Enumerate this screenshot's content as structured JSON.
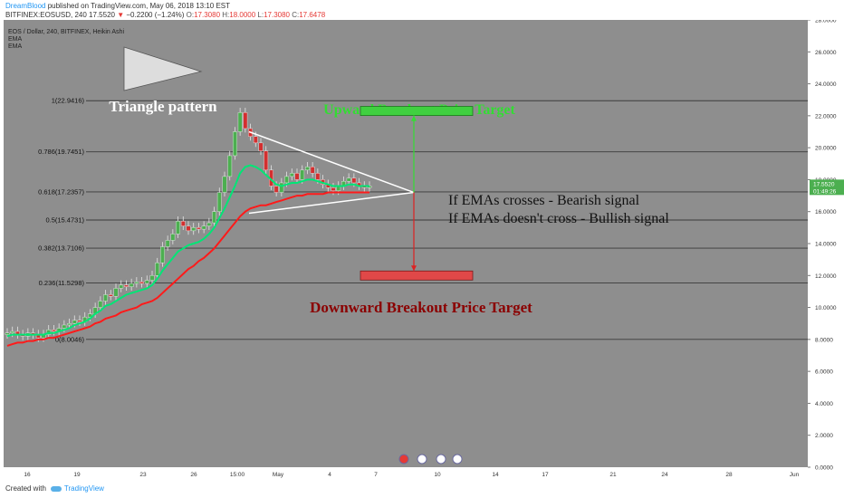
{
  "header": {
    "author": "DreamBlood",
    "published_text": "published on TradingView.com, May 06, 2018 13:10 EST",
    "symbol": "BITFINEX:EOSUSD, 240",
    "last": "17.5520",
    "change_arrow": "▼",
    "change": "−0.2200 (−1.24%)",
    "o_label": "O:",
    "o_value": "17.3080",
    "h_label": "H:",
    "h_value": "18.0000",
    "l_label": "L:",
    "l_value": "17.3080",
    "c_label": "C:",
    "c_value": "17.6478"
  },
  "footer": {
    "created_with": "Created with",
    "brand": "TradingView"
  },
  "colors": {
    "chart_bg": "#8e8e8e",
    "axis_bg": "#ffffff",
    "bull": "#4caf50",
    "bear": "#d32f2f",
    "ema_fast": "#00e676",
    "ema_slow": "#ff1a1a",
    "fib_line": "#3a3a3a",
    "up_target": "#40d040",
    "down_target": "#e04848"
  },
  "chart_data": {
    "type": "candlestick",
    "legend": [
      "EOS / Dollar, 240, BITFINEX, Heikin Ashi",
      "EMA",
      "EMA"
    ],
    "y_axis": {
      "min": 0,
      "max": 28,
      "ticks": [
        "28.0000",
        "26.0000",
        "24.0000",
        "22.0000",
        "20.0000",
        "18.0000",
        "16.0000",
        "14.0000",
        "12.0000",
        "10.0000",
        "8.0000",
        "6.0000",
        "4.0000",
        "2.0000",
        "0.0000"
      ]
    },
    "x_ticks": [
      "16",
      "19",
      "23",
      "26",
      "15:00",
      "May",
      "4",
      "7",
      "10",
      "14",
      "17",
      "21",
      "24",
      "28",
      "Jun"
    ],
    "price_label": {
      "price": "17.5520",
      "value": 17.552,
      "countdown": "01:49:26"
    },
    "fib_levels": [
      {
        "label": "1(22.9416)",
        "value": 22.9416
      },
      {
        "label": "0.786(19.7451)",
        "value": 19.7451
      },
      {
        "label": "0.618(17.2357)",
        "value": 17.2357
      },
      {
        "label": "0.5(15.4731)",
        "value": 15.4731
      },
      {
        "label": "0.382(13.7106)",
        "value": 13.7106
      },
      {
        "label": "0.236(11.5298)",
        "value": 11.5298
      },
      {
        "label": "0(8.0046)",
        "value": 8.0046
      }
    ],
    "price_series": [
      8.4,
      8.5,
      8.3,
      8.2,
      8.4,
      8.3,
      8.1,
      8.3,
      8.6,
      8.5,
      8.7,
      8.9,
      9.0,
      9.2,
      9.1,
      9.4,
      9.6,
      10.0,
      10.4,
      10.8,
      10.7,
      11.2,
      11.4,
      11.3,
      11.5,
      11.6,
      11.5,
      11.7,
      12.0,
      12.8,
      13.8,
      14.2,
      14.6,
      15.4,
      15.1,
      14.8,
      15.0,
      14.9,
      15.1,
      15.3,
      16.0,
      17.2,
      18.2,
      19.5,
      21.0,
      22.2,
      21.2,
      20.7,
      20.3,
      19.8,
      18.6,
      17.6,
      17.2,
      17.8,
      18.2,
      18.4,
      18.0,
      18.6,
      18.8,
      18.4,
      18.0,
      17.7,
      17.5,
      17.3,
      17.6,
      17.9,
      18.1,
      17.8,
      17.6,
      17.5,
      17.6
    ],
    "ema_fast": [
      8.2,
      8.3,
      8.3,
      8.3,
      8.3,
      8.3,
      8.3,
      8.3,
      8.4,
      8.4,
      8.5,
      8.6,
      8.7,
      8.9,
      9.0,
      9.1,
      9.3,
      9.6,
      9.8,
      10.1,
      10.2,
      10.4,
      10.6,
      10.8,
      10.9,
      11.0,
      11.1,
      11.2,
      11.4,
      11.8,
      12.3,
      12.7,
      13.1,
      13.5,
      13.7,
      13.9,
      14.0,
      14.1,
      14.3,
      14.6,
      15.0,
      15.6,
      16.2,
      16.9,
      17.6,
      18.4,
      18.8,
      18.9,
      18.8,
      18.6,
      18.3,
      18.0,
      17.7,
      17.6,
      17.7,
      17.8,
      17.8,
      17.9,
      18.0,
      18.0,
      17.9,
      17.8,
      17.7,
      17.6,
      17.6,
      17.6,
      17.7,
      17.7,
      17.6,
      17.6,
      17.6
    ],
    "ema_slow": [
      7.6,
      7.7,
      7.8,
      7.8,
      7.9,
      7.9,
      8.0,
      8.0,
      8.1,
      8.1,
      8.2,
      8.3,
      8.4,
      8.5,
      8.6,
      8.7,
      8.8,
      9.0,
      9.1,
      9.3,
      9.4,
      9.5,
      9.7,
      9.8,
      9.9,
      10.0,
      10.2,
      10.3,
      10.4,
      10.6,
      10.9,
      11.2,
      11.5,
      11.8,
      12.1,
      12.4,
      12.6,
      12.9,
      13.1,
      13.4,
      13.7,
      14.1,
      14.5,
      14.9,
      15.3,
      15.7,
      16.0,
      16.2,
      16.3,
      16.4,
      16.4,
      16.5,
      16.6,
      16.7,
      16.8,
      16.9,
      17.0,
      17.0,
      17.1,
      17.1,
      17.1,
      17.1,
      17.2,
      17.2,
      17.2,
      17.2,
      17.2,
      17.2,
      17.2,
      17.2,
      17.2
    ],
    "annotations": {
      "triangle_label": "Triangle pattern",
      "up_target_label": "Upward Breakout Price Target",
      "down_target_label": "Downward Breakout Price Target",
      "signal_line1": "If EMAs crosses - Bearish signal",
      "signal_line2": "If EMAs doesn't cross - Bullish signal",
      "up_target_value": 22.3,
      "down_target_value": 12.0,
      "apex_value": 17.2
    }
  }
}
